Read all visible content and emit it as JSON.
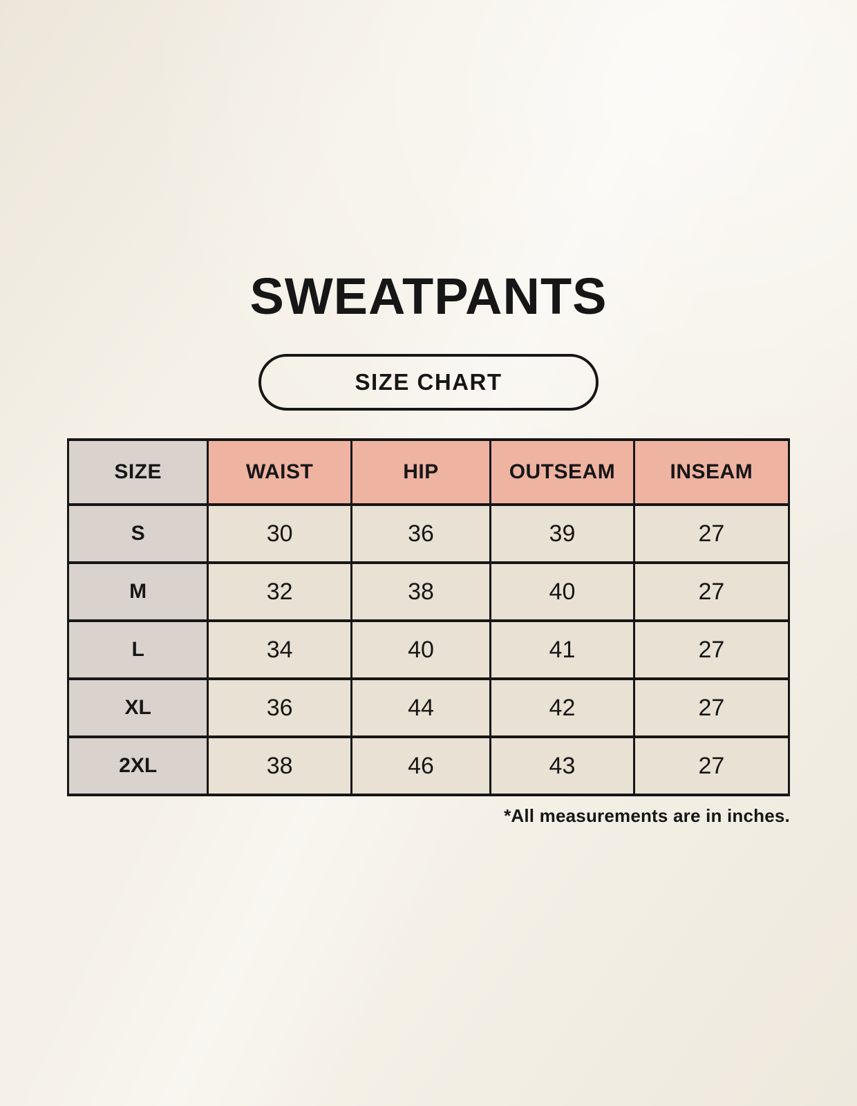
{
  "page": {
    "title": "SWEATPANTS",
    "badge": "SIZE CHART",
    "footnote": "*All measurements are in inches."
  },
  "chart_data": {
    "type": "table",
    "title": "SWEATPANTS",
    "subtitle": "SIZE CHART",
    "headers": [
      "SIZE",
      "WAIST",
      "HIP",
      "OUTSEAM",
      "INSEAM"
    ],
    "rows": [
      [
        "S",
        "30",
        "36",
        "39",
        "27"
      ],
      [
        "M",
        "32",
        "38",
        "40",
        "27"
      ],
      [
        "L",
        "34",
        "40",
        "41",
        "27"
      ],
      [
        "XL",
        "36",
        "44",
        "42",
        "27"
      ],
      [
        "2XL",
        "38",
        "46",
        "43",
        "27"
      ]
    ],
    "footnote": "*All measurements are in inches."
  },
  "colors": {
    "background": "#f5f1e8",
    "accent_header": "#efb3a2",
    "size_column": "#d9d2cd",
    "data_cell": "#e9e1d3",
    "border": "#161616",
    "text": "#161616"
  }
}
